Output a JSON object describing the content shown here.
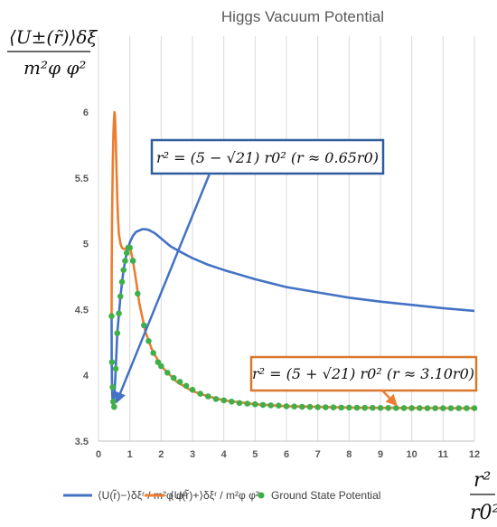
{
  "chart_data": {
    "type": "line",
    "title": "Higgs Vacuum Potential",
    "ylabel": {
      "numerator": "⟨U±(r̃)⟩δξ",
      "denominator": "m²φ φ²"
    },
    "xlabel": {
      "numerator": "r²",
      "denominator": "r0²"
    },
    "xlim": [
      0,
      12
    ],
    "ylim": [
      3.5,
      6.0
    ],
    "x_ticks": [
      "0",
      "1",
      "2",
      "3",
      "4",
      "5",
      "6",
      "7",
      "8",
      "9",
      "10",
      "11",
      "12"
    ],
    "y_ticks": [
      "3.5",
      "4",
      "4.5",
      "5",
      "5.5",
      "6"
    ],
    "grid": "vertical",
    "colors": {
      "minus": "#4472C4",
      "plus": "#ED7D31",
      "ground": "#3FAF4A"
    },
    "series": [
      {
        "name": "⟨U(r̃)−⟩δξʳ / m²φ φ²",
        "key": "minus",
        "x": [
          0.417,
          0.42,
          0.43,
          0.44,
          0.46,
          0.48,
          0.5,
          0.55,
          0.6,
          0.7,
          0.8,
          0.9,
          1.0,
          1.1,
          1.2,
          1.3,
          1.4,
          1.5,
          1.6,
          1.8,
          2.0,
          2.3,
          2.6,
          3.0,
          3.5,
          4.0,
          5.0,
          6.0,
          7.0,
          8.0,
          9.0,
          10.0,
          11.0,
          12.0
        ],
        "values": [
          4.45,
          4.1,
          3.95,
          3.84,
          3.78,
          3.76,
          3.8,
          4.05,
          4.32,
          4.6,
          4.8,
          4.93,
          5.01,
          5.06,
          5.09,
          5.1,
          5.11,
          5.11,
          5.105,
          5.08,
          5.04,
          4.98,
          4.94,
          4.89,
          4.84,
          4.8,
          4.73,
          4.67,
          4.63,
          4.59,
          4.56,
          4.535,
          4.51,
          4.49
        ]
      },
      {
        "name": "⟨U(r̃)+⟩δξʳ / m²φ φ²",
        "key": "plus",
        "x": [
          0.417,
          0.42,
          0.43,
          0.44,
          0.46,
          0.48,
          0.5,
          0.51,
          0.52,
          0.53,
          0.54,
          0.55,
          0.56,
          0.58,
          0.6,
          0.62,
          0.65,
          0.7,
          0.75,
          0.8,
          0.85,
          0.9,
          0.95,
          1.0,
          1.1,
          1.2,
          1.3,
          1.5,
          1.7,
          2.0,
          2.5,
          3.0,
          3.5,
          4.0,
          5.0,
          6.0,
          7.0,
          8.0,
          9.0,
          10.0,
          11.0,
          12.0
        ],
        "values": [
          4.45,
          4.8,
          5.1,
          5.35,
          5.65,
          5.85,
          5.97,
          6.0,
          5.99,
          5.95,
          5.88,
          5.8,
          5.7,
          5.52,
          5.35,
          5.21,
          5.08,
          5.0,
          4.97,
          4.96,
          4.96,
          4.97,
          4.98,
          4.98,
          4.87,
          4.72,
          4.55,
          4.33,
          4.2,
          4.07,
          3.95,
          3.88,
          3.84,
          3.81,
          3.78,
          3.765,
          3.76,
          3.755,
          3.753,
          3.752,
          3.751,
          3.75
        ]
      },
      {
        "name": "Ground State Potential",
        "key": "ground",
        "markers": "dots",
        "x": [
          0.417,
          0.43,
          0.45,
          0.47,
          0.5,
          0.55,
          0.6,
          0.65,
          0.7,
          0.75,
          0.8,
          0.85,
          0.9,
          0.95,
          1.0,
          1.1,
          1.25,
          1.45,
          1.6,
          1.75,
          1.9,
          2.0,
          2.2,
          2.4,
          2.6,
          2.8,
          3.0,
          3.25,
          3.5,
          3.75,
          4.0,
          4.25,
          4.5,
          4.75,
          5.0,
          5.25,
          5.5,
          5.75,
          6.0,
          6.25,
          6.5,
          6.75,
          7.0,
          7.25,
          7.5,
          7.75,
          8.0,
          8.25,
          8.5,
          8.75,
          9.0,
          9.25,
          9.5,
          9.75,
          10.0,
          10.25,
          10.5,
          10.75,
          11.0,
          11.25,
          11.5,
          11.75,
          12.0
        ],
        "values": [
          4.45,
          4.1,
          3.91,
          3.8,
          3.76,
          4.05,
          4.32,
          4.47,
          4.6,
          4.71,
          4.8,
          4.87,
          4.93,
          4.97,
          4.97,
          4.87,
          4.62,
          4.38,
          4.26,
          4.17,
          4.1,
          4.07,
          4.02,
          3.98,
          3.95,
          3.92,
          3.89,
          3.86,
          3.84,
          3.82,
          3.81,
          3.8,
          3.79,
          3.785,
          3.78,
          3.775,
          3.772,
          3.77,
          3.765,
          3.763,
          3.761,
          3.76,
          3.758,
          3.757,
          3.756,
          3.755,
          3.755,
          3.754,
          3.753,
          3.753,
          3.752,
          3.752,
          3.752,
          3.751,
          3.751,
          3.751,
          3.75,
          3.75,
          3.75,
          3.75,
          3.75,
          3.75,
          3.75
        ]
      }
    ],
    "annotations": [
      {
        "text": "r² = (5 − √21) r0² (r ≈ 0.65r0)",
        "color": "#2E5C9E",
        "arrow_to_x": 0.5,
        "arrow_to_y": 3.76
      },
      {
        "text": "r² = (5 + √21) r0² (r ≈ 3.10r0)",
        "color": "#D9782C",
        "arrow_to_x": 9.55,
        "arrow_to_y": 3.752
      }
    ],
    "legend": {
      "placement": "bottom",
      "items": [
        "⟨U(r̃)−⟩δξʳ / m²φ φ²",
        "⟨U(r̃)+⟩δξʳ / m²φ φ²",
        "Ground State Potential"
      ]
    }
  }
}
